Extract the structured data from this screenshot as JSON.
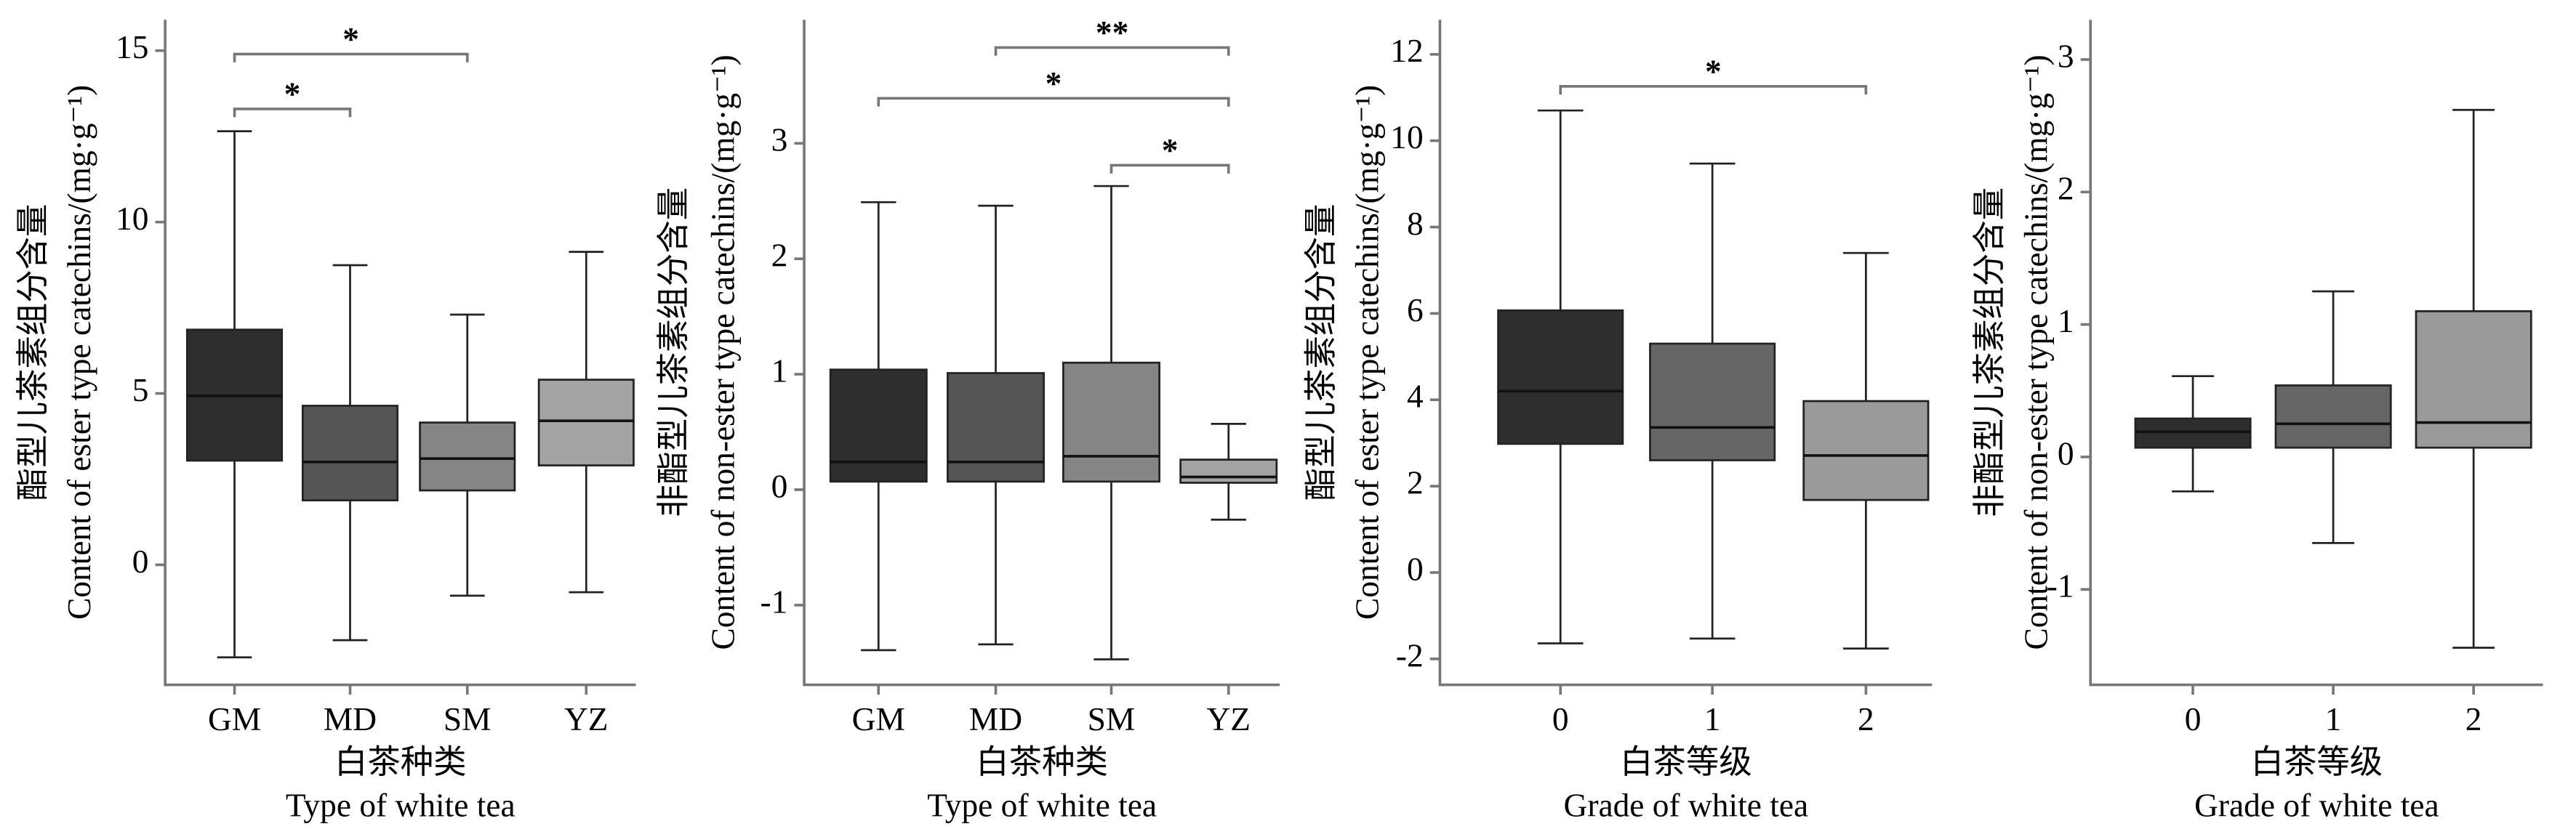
{
  "chart_data": [
    {
      "type": "box",
      "y_label": [
        "酯型儿茶素组分含量",
        "Content of ester type catechins/(mg·g⁻¹)"
      ],
      "x_label": [
        "白茶种类",
        "Type of white tea"
      ],
      "categories": [
        "GM",
        "MD",
        "SM",
        "YZ"
      ],
      "colors": [
        "#2e2e2e",
        "#555555",
        "#858585",
        "#a3a3a3"
      ],
      "min": [
        -2.7,
        -2.2,
        -0.9,
        -0.8
      ],
      "q1": [
        3.04,
        1.88,
        2.17,
        2.9
      ],
      "median": [
        4.93,
        3.0,
        3.1,
        4.2
      ],
      "q3": [
        6.86,
        4.64,
        4.15,
        5.4
      ],
      "max": [
        12.65,
        8.74,
        7.3,
        9.13
      ],
      "ylim": [
        -3.5,
        15.9
      ],
      "yticks": [
        0,
        5,
        10,
        15
      ],
      "annotations": [
        {
          "label": "*",
          "from": 0,
          "to": 2,
          "y": 14.9
        },
        {
          "label": "*",
          "from": 0,
          "to": 1,
          "y": 13.3
        }
      ]
    },
    {
      "type": "box",
      "y_label": [
        "非酯型儿茶素组分含量",
        "Content of non-ester type catechins/(mg·g⁻¹)"
      ],
      "x_label": [
        "白茶种类",
        "Type of white tea"
      ],
      "categories": [
        "GM",
        "MD",
        "SM",
        "YZ"
      ],
      "colors": [
        "#2e2e2e",
        "#555555",
        "#858585",
        "#a3a3a3"
      ],
      "min": [
        -1.39,
        -1.34,
        -1.47,
        -0.26
      ],
      "q1": [
        0.07,
        0.07,
        0.07,
        0.06
      ],
      "median": [
        0.24,
        0.24,
        0.29,
        0.11
      ],
      "q3": [
        1.04,
        1.01,
        1.1,
        0.26
      ],
      "max": [
        2.49,
        2.46,
        2.63,
        0.57
      ],
      "ylim": [
        -1.69,
        4.07
      ],
      "yticks": [
        -1,
        0,
        1,
        2,
        3
      ],
      "annotations": [
        {
          "label": "**",
          "from": 1,
          "to": 3,
          "y": 3.83
        },
        {
          "label": "*",
          "from": 0,
          "to": 3,
          "y": 3.39
        },
        {
          "label": "*",
          "from": 2,
          "to": 3,
          "y": 2.81
        }
      ]
    },
    {
      "type": "box",
      "y_label": [
        "酯型儿茶素组分含量",
        "Content of ester type catechins/(mg·g⁻¹)"
      ],
      "x_label": [
        "白茶等级",
        "Grade of white tea"
      ],
      "categories": [
        "0",
        "1",
        "2"
      ],
      "colors": [
        "#2e2e2e",
        "#666666",
        "#9a9a9a"
      ],
      "min": [
        -1.64,
        -1.53,
        -1.76
      ],
      "q1": [
        2.98,
        2.6,
        1.68
      ],
      "median": [
        4.2,
        3.36,
        2.71
      ],
      "q3": [
        6.07,
        5.3,
        3.97
      ],
      "max": [
        10.7,
        9.47,
        7.4
      ],
      "ylim": [
        -2.6,
        12.8
      ],
      "yticks": [
        -2,
        0,
        2,
        4,
        6,
        8,
        10,
        12
      ],
      "annotations": [
        {
          "label": "*",
          "from": 0,
          "to": 2,
          "y": 11.26
        }
      ]
    },
    {
      "type": "box",
      "y_label": [
        "非酯型儿茶素组分含量",
        "Content of non-ester type catechins/(mg·g⁻¹)"
      ],
      "x_label": [
        "白茶等级",
        "Grade of white tea"
      ],
      "categories": [
        "0",
        "1",
        "2"
      ],
      "colors": [
        "#2e2e2e",
        "#666666",
        "#9a9a9a"
      ],
      "min": [
        -0.26,
        -0.65,
        -1.44
      ],
      "q1": [
        0.07,
        0.07,
        0.07
      ],
      "median": [
        0.19,
        0.25,
        0.26
      ],
      "q3": [
        0.29,
        0.54,
        1.1
      ],
      "max": [
        0.61,
        1.25,
        2.62
      ],
      "ylim": [
        -1.72,
        3.3
      ],
      "yticks": [
        -1,
        0,
        1,
        2,
        3
      ],
      "annotations": []
    }
  ]
}
